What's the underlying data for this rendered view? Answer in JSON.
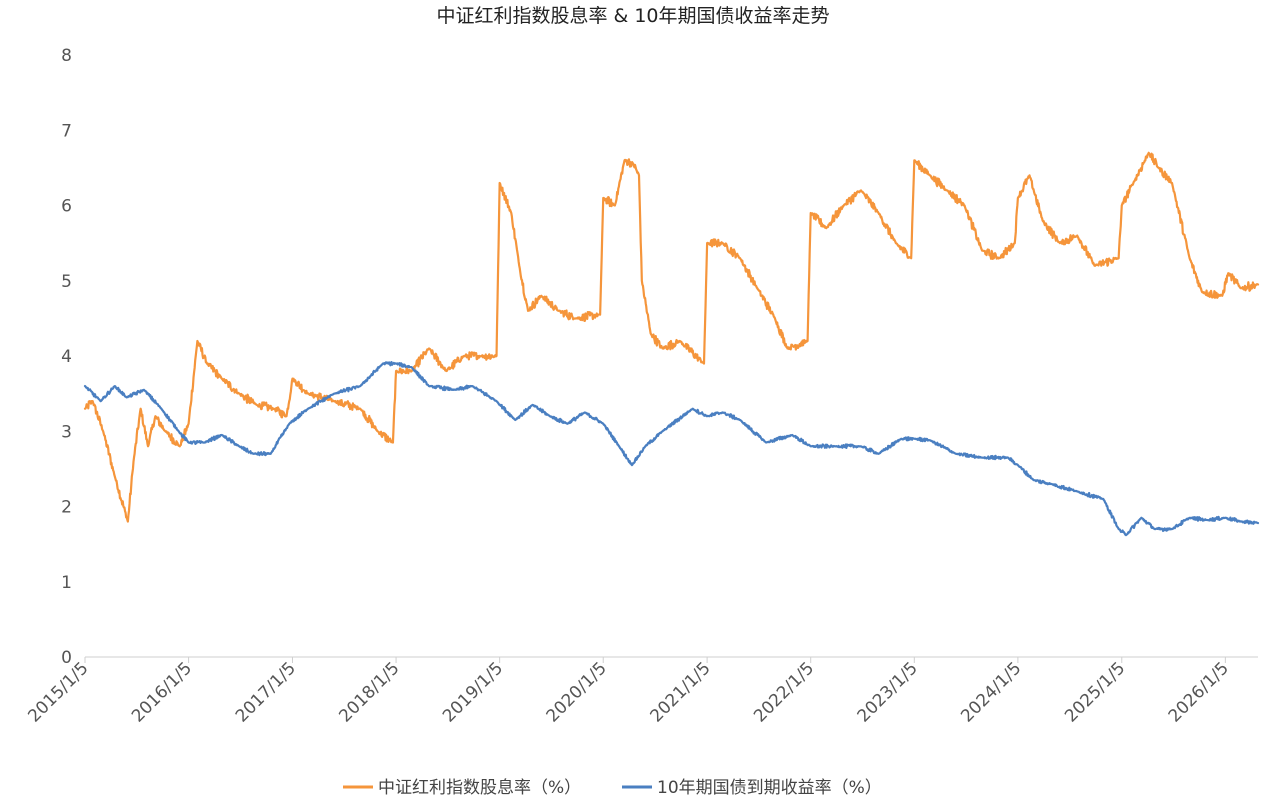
{
  "chart_data": {
    "type": "line",
    "title": "中证红利指数股息率 & 10年期国债收益率走势",
    "xlabel": "",
    "ylabel": "",
    "ylim": [
      0,
      8
    ],
    "yticks": [
      "0",
      "1",
      "2",
      "3",
      "4",
      "5",
      "6",
      "7",
      "8"
    ],
    "xlim": [
      "2015-01-05",
      "2026-04-30"
    ],
    "xtick_labels": [
      "2015/1/5",
      "2016/1/5",
      "2017/1/5",
      "2018/1/5",
      "2019/1/5",
      "2020/1/5",
      "2021/1/5",
      "2022/1/5",
      "2023/1/5",
      "2024/1/5",
      "2025/1/5",
      "2026/1/5"
    ],
    "grid": false,
    "legend_position": "bottom",
    "series": [
      {
        "name": "中证红利指数股息率（%）",
        "color": "#F5953B",
        "points": [
          [
            "2015-01-05",
            3.3
          ],
          [
            "2015-02-01",
            3.4
          ],
          [
            "2015-03-10",
            3.0
          ],
          [
            "2015-04-20",
            2.4
          ],
          [
            "2015-06-05",
            1.8
          ],
          [
            "2015-06-25",
            2.6
          ],
          [
            "2015-07-20",
            3.3
          ],
          [
            "2015-08-15",
            2.8
          ],
          [
            "2015-09-10",
            3.2
          ],
          [
            "2015-10-15",
            3.0
          ],
          [
            "2015-12-05",
            2.8
          ],
          [
            "2016-01-05",
            3.1
          ],
          [
            "2016-02-05",
            4.2
          ],
          [
            "2016-03-10",
            3.9
          ],
          [
            "2016-05-01",
            3.7
          ],
          [
            "2016-07-01",
            3.5
          ],
          [
            "2016-09-01",
            3.35
          ],
          [
            "2016-11-01",
            3.3
          ],
          [
            "2016-12-15",
            3.2
          ],
          [
            "2017-01-05",
            3.7
          ],
          [
            "2017-03-01",
            3.5
          ],
          [
            "2017-06-01",
            3.4
          ],
          [
            "2017-09-01",
            3.3
          ],
          [
            "2017-11-01",
            3.0
          ],
          [
            "2017-12-25",
            2.85
          ],
          [
            "2018-01-05",
            3.8
          ],
          [
            "2018-03-01",
            3.8
          ],
          [
            "2018-05-01",
            4.1
          ],
          [
            "2018-07-01",
            3.8
          ],
          [
            "2018-09-01",
            4.0
          ],
          [
            "2018-11-01",
            4.0
          ],
          [
            "2018-12-25",
            4.0
          ],
          [
            "2019-01-05",
            6.3
          ],
          [
            "2019-02-15",
            5.9
          ],
          [
            "2019-03-15",
            5.2
          ],
          [
            "2019-04-15",
            4.6
          ],
          [
            "2019-06-01",
            4.8
          ],
          [
            "2019-08-01",
            4.6
          ],
          [
            "2019-10-01",
            4.5
          ],
          [
            "2019-12-25",
            4.55
          ],
          [
            "2020-01-05",
            6.1
          ],
          [
            "2020-02-15",
            6.0
          ],
          [
            "2020-03-20",
            6.6
          ],
          [
            "2020-04-20",
            6.55
          ],
          [
            "2020-05-10",
            6.4
          ],
          [
            "2020-05-20",
            5.0
          ],
          [
            "2020-06-20",
            4.3
          ],
          [
            "2020-08-01",
            4.1
          ],
          [
            "2020-10-01",
            4.2
          ],
          [
            "2020-12-25",
            3.9
          ],
          [
            "2021-01-05",
            5.5
          ],
          [
            "2021-03-01",
            5.5
          ],
          [
            "2021-05-01",
            5.3
          ],
          [
            "2021-07-01",
            4.9
          ],
          [
            "2021-09-01",
            4.5
          ],
          [
            "2021-10-15",
            4.1
          ],
          [
            "2021-12-25",
            4.2
          ],
          [
            "2022-01-05",
            5.9
          ],
          [
            "2022-03-01",
            5.7
          ],
          [
            "2022-05-01",
            6.0
          ],
          [
            "2022-07-01",
            6.2
          ],
          [
            "2022-09-01",
            5.9
          ],
          [
            "2022-11-01",
            5.5
          ],
          [
            "2022-12-25",
            5.3
          ],
          [
            "2023-01-05",
            6.6
          ],
          [
            "2023-03-01",
            6.4
          ],
          [
            "2023-05-01",
            6.2
          ],
          [
            "2023-07-01",
            6.0
          ],
          [
            "2023-09-01",
            5.4
          ],
          [
            "2023-11-01",
            5.3
          ],
          [
            "2023-12-25",
            5.5
          ],
          [
            "2024-01-05",
            6.1
          ],
          [
            "2024-02-15",
            6.4
          ],
          [
            "2024-04-01",
            5.8
          ],
          [
            "2024-06-01",
            5.5
          ],
          [
            "2024-08-01",
            5.6
          ],
          [
            "2024-10-01",
            5.2
          ],
          [
            "2024-12-25",
            5.3
          ],
          [
            "2025-01-05",
            6.0
          ],
          [
            "2025-02-15",
            6.3
          ],
          [
            "2025-04-10",
            6.7
          ],
          [
            "2025-05-15",
            6.5
          ],
          [
            "2025-07-01",
            6.3
          ],
          [
            "2025-09-01",
            5.3
          ],
          [
            "2025-10-15",
            4.85
          ],
          [
            "2025-12-25",
            4.8
          ],
          [
            "2026-01-15",
            5.1
          ],
          [
            "2026-03-01",
            4.9
          ],
          [
            "2026-04-30",
            4.95
          ]
        ]
      },
      {
        "name": "10年期国债到期收益率（%）",
        "color": "#4A7FC1",
        "points": [
          [
            "2015-01-05",
            3.6
          ],
          [
            "2015-03-01",
            3.4
          ],
          [
            "2015-04-20",
            3.6
          ],
          [
            "2015-06-01",
            3.45
          ],
          [
            "2015-08-01",
            3.55
          ],
          [
            "2015-10-01",
            3.3
          ],
          [
            "2015-12-01",
            3.0
          ],
          [
            "2016-01-05",
            2.85
          ],
          [
            "2016-03-01",
            2.85
          ],
          [
            "2016-05-01",
            2.95
          ],
          [
            "2016-07-01",
            2.8
          ],
          [
            "2016-08-20",
            2.7
          ],
          [
            "2016-10-20",
            2.7
          ],
          [
            "2016-12-25",
            3.1
          ],
          [
            "2017-03-01",
            3.3
          ],
          [
            "2017-06-01",
            3.5
          ],
          [
            "2017-09-01",
            3.6
          ],
          [
            "2017-11-20",
            3.9
          ],
          [
            "2018-01-05",
            3.9
          ],
          [
            "2018-03-01",
            3.85
          ],
          [
            "2018-05-01",
            3.6
          ],
          [
            "2018-08-01",
            3.55
          ],
          [
            "2018-10-01",
            3.6
          ],
          [
            "2018-12-25",
            3.4
          ],
          [
            "2019-03-01",
            3.15
          ],
          [
            "2019-05-01",
            3.35
          ],
          [
            "2019-07-01",
            3.2
          ],
          [
            "2019-09-01",
            3.1
          ],
          [
            "2019-11-01",
            3.25
          ],
          [
            "2020-01-05",
            3.1
          ],
          [
            "2020-03-01",
            2.8
          ],
          [
            "2020-04-15",
            2.55
          ],
          [
            "2020-06-01",
            2.8
          ],
          [
            "2020-08-01",
            3.0
          ],
          [
            "2020-11-15",
            3.3
          ],
          [
            "2021-01-05",
            3.2
          ],
          [
            "2021-03-01",
            3.25
          ],
          [
            "2021-05-01",
            3.15
          ],
          [
            "2021-08-01",
            2.85
          ],
          [
            "2021-11-01",
            2.95
          ],
          [
            "2022-01-05",
            2.8
          ],
          [
            "2022-04-01",
            2.8
          ],
          [
            "2022-07-01",
            2.8
          ],
          [
            "2022-09-01",
            2.7
          ],
          [
            "2022-11-20",
            2.9
          ],
          [
            "2023-01-05",
            2.9
          ],
          [
            "2023-03-01",
            2.88
          ],
          [
            "2023-06-01",
            2.7
          ],
          [
            "2023-09-01",
            2.65
          ],
          [
            "2023-12-01",
            2.65
          ],
          [
            "2024-01-05",
            2.55
          ],
          [
            "2024-03-01",
            2.35
          ],
          [
            "2024-05-01",
            2.3
          ],
          [
            "2024-08-01",
            2.2
          ],
          [
            "2024-11-01",
            2.1
          ],
          [
            "2024-12-25",
            1.7
          ],
          [
            "2025-01-20",
            1.62
          ],
          [
            "2025-03-15",
            1.85
          ],
          [
            "2025-05-01",
            1.7
          ],
          [
            "2025-07-01",
            1.7
          ],
          [
            "2025-09-01",
            1.85
          ],
          [
            "2025-11-01",
            1.82
          ],
          [
            "2026-01-05",
            1.85
          ],
          [
            "2026-03-01",
            1.8
          ],
          [
            "2026-04-30",
            1.78
          ]
        ]
      }
    ]
  }
}
